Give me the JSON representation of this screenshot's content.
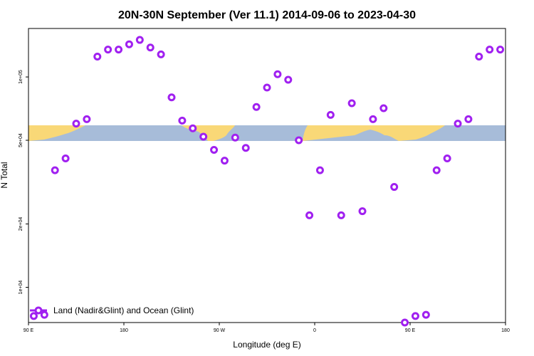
{
  "chart_data": {
    "type": "scatter",
    "title": "20N-30N September (Ver 11.1)   2014-09-06 to 2023-04-30",
    "xlabel": "Longitude (deg E)",
    "ylabel": "N Total",
    "x_ticks": [
      {
        "value": 90,
        "label": "90 E"
      },
      {
        "value": 180,
        "label": "180"
      },
      {
        "value": 270,
        "label": "90 W"
      },
      {
        "value": 360,
        "label": "0"
      },
      {
        "value": 450,
        "label": "90 E"
      },
      {
        "value": 540,
        "label": "180"
      }
    ],
    "y_scale": "log",
    "y_ticks": [
      {
        "value": 10000,
        "label": "1e+04"
      },
      {
        "value": 20000,
        "label": "2e+04"
      },
      {
        "value": 50000,
        "label": "5e+04"
      },
      {
        "value": 100000,
        "label": "1e+05"
      }
    ],
    "xlim": [
      90,
      540
    ],
    "ylim": [
      6800,
      170000
    ],
    "grid": false,
    "legend_position": "bottom-left",
    "series": [
      {
        "name": "Land (Nadir&Glint) and Ocean (Glint)",
        "color": "#a020f0",
        "points": [
          [
            95,
            7300
          ],
          [
            105,
            7400
          ],
          [
            115,
            36000
          ],
          [
            125,
            41000
          ],
          [
            135,
            60000
          ],
          [
            145,
            63000
          ],
          [
            155,
            125000
          ],
          [
            165,
            135000
          ],
          [
            175,
            135000
          ],
          [
            185,
            143000
          ],
          [
            195,
            150000
          ],
          [
            205,
            138000
          ],
          [
            215,
            128000
          ],
          [
            225,
            80000
          ],
          [
            235,
            62000
          ],
          [
            245,
            57000
          ],
          [
            255,
            52000
          ],
          [
            265,
            45000
          ],
          [
            275,
            40000
          ],
          [
            285,
            51500
          ],
          [
            295,
            46000
          ],
          [
            305,
            72000
          ],
          [
            315,
            89000
          ],
          [
            325,
            103000
          ],
          [
            335,
            97000
          ],
          [
            345,
            50000
          ],
          [
            355,
            22000
          ],
          [
            365,
            36000
          ],
          [
            375,
            66000
          ],
          [
            385,
            22000
          ],
          [
            395,
            75000
          ],
          [
            405,
            23000
          ],
          [
            415,
            63000
          ],
          [
            425,
            71000
          ],
          [
            435,
            30000
          ],
          [
            445,
            6800
          ],
          [
            455,
            7300
          ],
          [
            465,
            7400
          ],
          [
            475,
            36000
          ],
          [
            485,
            41000
          ],
          [
            495,
            60000
          ],
          [
            505,
            63000
          ],
          [
            515,
            125000
          ],
          [
            525,
            135000
          ],
          [
            535,
            135000
          ]
        ]
      }
    ]
  }
}
